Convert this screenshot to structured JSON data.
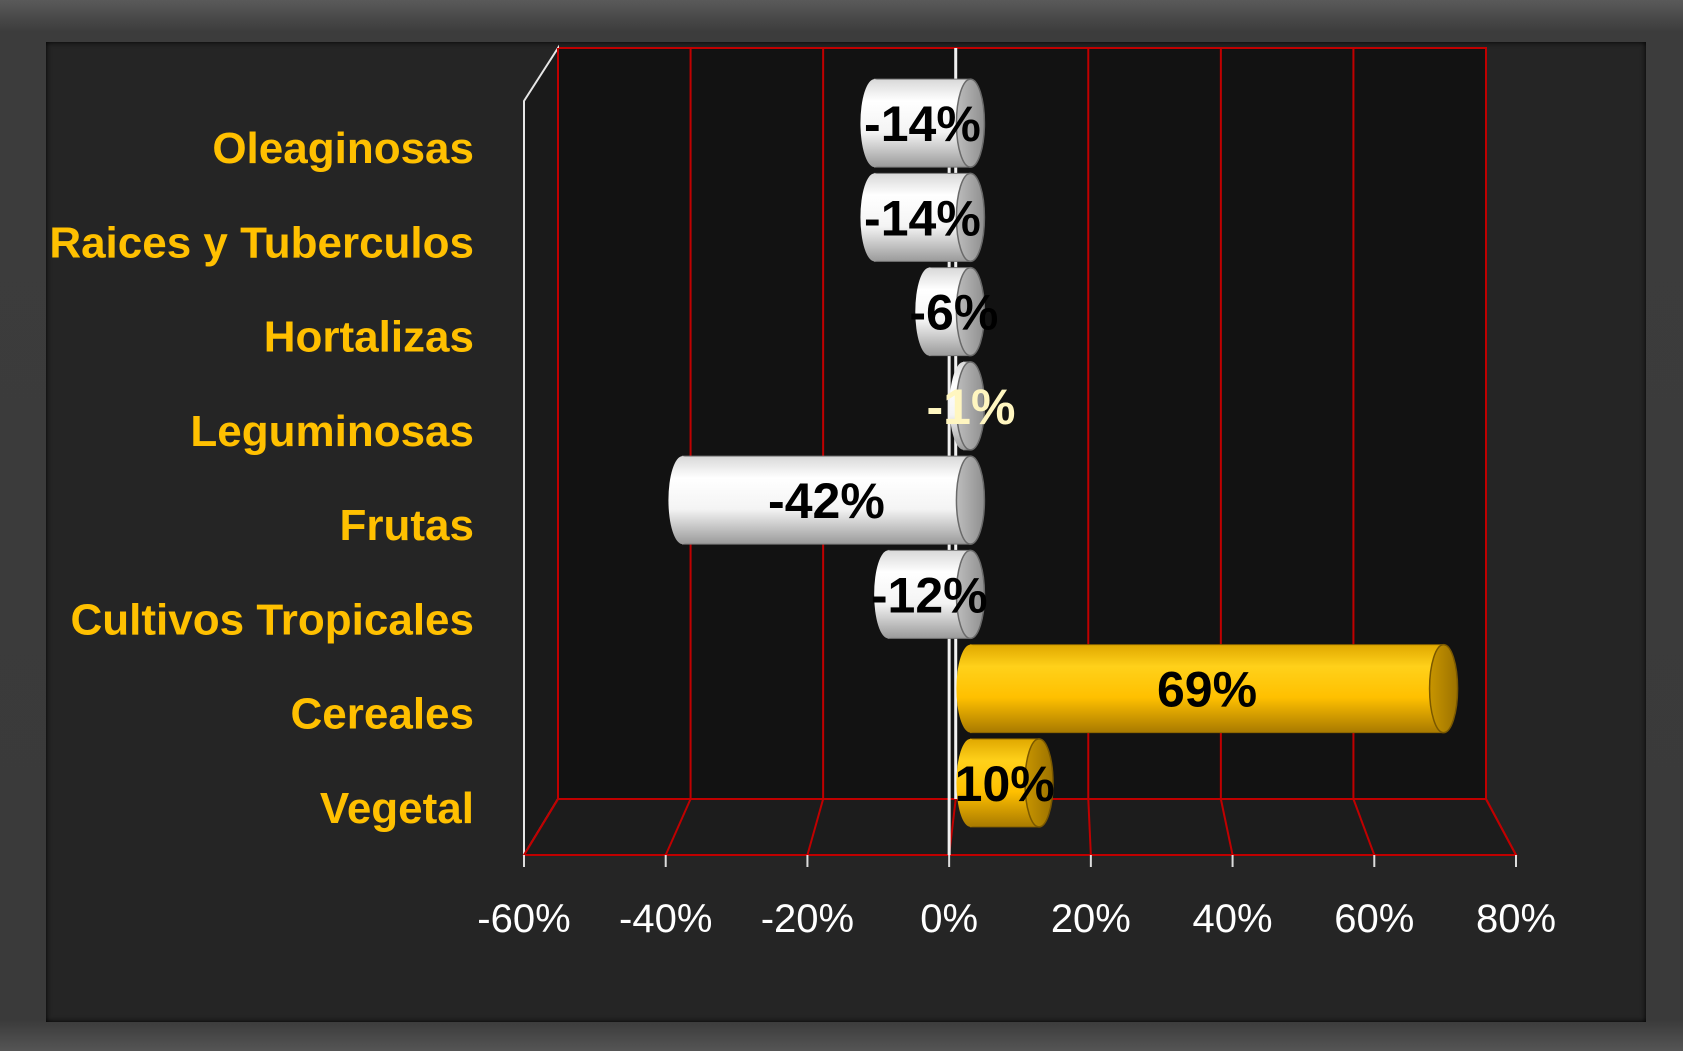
{
  "chart_data": {
    "type": "bar",
    "orientation": "horizontal",
    "style": "3d-cylinder",
    "categories": [
      "Oleaginosas",
      "Raices y Tuberculos",
      "Hortalizas",
      "Leguminosas",
      "Frutas",
      "Cultivos Tropicales",
      "Cereales",
      "Vegetal"
    ],
    "values": [
      -14,
      -14,
      -6,
      -1,
      -42,
      -12,
      69,
      10
    ],
    "data_labels": [
      "-14%",
      "-14%",
      "-6%",
      "-1%",
      "-42%",
      "-12%",
      "69%",
      "10%"
    ],
    "x_ticks": [
      "-60%",
      "-40%",
      "-20%",
      "0%",
      "20%",
      "40%",
      "60%",
      "80%"
    ],
    "xlim": [
      -60,
      80
    ],
    "grid": true,
    "legend": "none",
    "colors": {
      "negative_bar": "#ffffff",
      "positive_bar": "#ffc000",
      "gridline": "#c00000",
      "category_label": "#ffc000",
      "tick_label": "#ffffff",
      "plot_background": "#121212",
      "panel_background": "#252525"
    }
  }
}
